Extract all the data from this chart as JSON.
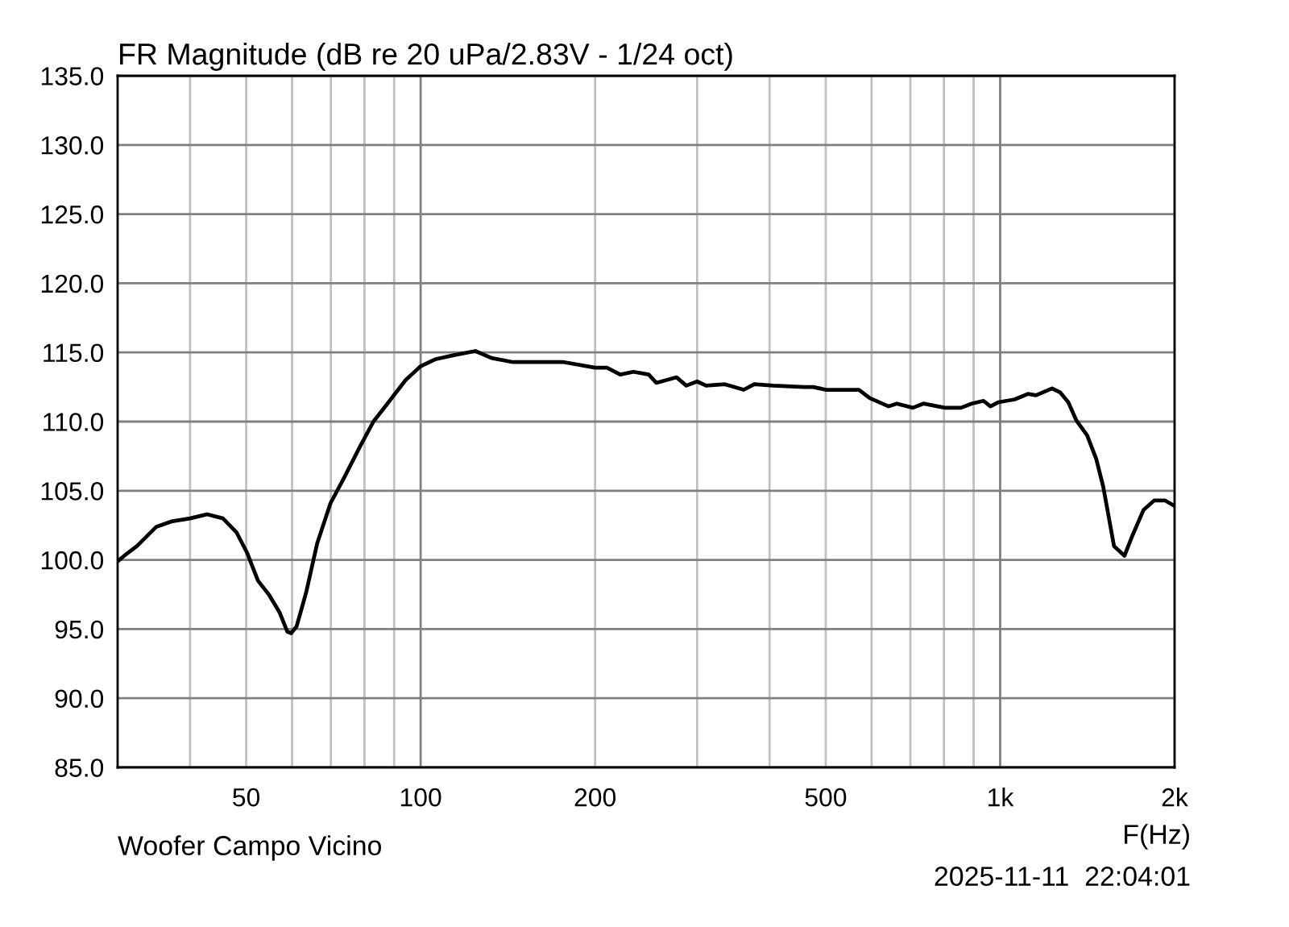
{
  "chart_data": {
    "type": "line",
    "title": "FR Magnitude (dB re 20 uPa/2.83V - 1/24 oct)",
    "xlabel": "F(Hz)",
    "annotations": [
      "Woofer Campo Vicino",
      "2025-11-11  22:04:01"
    ],
    "x": [
      30,
      30.8,
      32.4,
      35.0,
      37.3,
      40,
      42.8,
      45.6,
      48.1,
      50.2,
      52.4,
      54.7,
      57.1,
      58.9,
      59.8,
      61.1,
      63.5,
      66.3,
      69.9,
      73.7,
      78.6,
      82.9,
      88.4,
      94.2,
      100,
      105.9,
      114.1,
      124.3,
      132.5,
      144.3,
      176.6,
      200,
      209.6,
      221,
      233,
      247.5,
      255,
      276.5,
      287.3,
      300,
      310.8,
      335,
      361,
      376.5,
      405.8,
      459,
      476,
      500,
      570.7,
      595.7,
      642,
      663,
      707,
      737,
      803,
      856,
      893,
      936,
      962,
      994,
      1059,
      1117,
      1153,
      1229,
      1270,
      1311,
      1353,
      1413,
      1465,
      1506,
      1538,
      1572,
      1639,
      1693,
      1767,
      1845,
      1924,
      2000
    ],
    "series": [
      {
        "color": "#000000",
        "values": [
          99.9,
          100.3,
          101.0,
          102.4,
          102.8,
          103.0,
          103.3,
          103.0,
          102.0,
          100.5,
          98.5,
          97.5,
          96.2,
          94.8,
          94.7,
          95.2,
          97.7,
          101.2,
          104.1,
          105.9,
          108.2,
          110.0,
          111.5,
          113.0,
          114.0,
          114.5,
          114.8,
          115.1,
          114.6,
          114.3,
          114.3,
          113.9,
          113.9,
          113.4,
          113.6,
          113.4,
          112.8,
          113.2,
          112.6,
          112.9,
          112.6,
          112.7,
          112.3,
          112.7,
          112.6,
          112.5,
          112.5,
          112.3,
          112.3,
          111.7,
          111.1,
          111.3,
          111.0,
          111.3,
          111.0,
          111.0,
          111.3,
          111.5,
          111.1,
          111.4,
          111.6,
          112.0,
          111.9,
          112.4,
          112.1,
          111.4,
          110.1,
          109.0,
          107.3,
          105.3,
          103.2,
          101.0,
          100.3,
          101.8,
          103.6,
          104.3,
          104.3,
          103.9
        ]
      }
    ],
    "log": "x",
    "xlim": [
      30,
      2000
    ],
    "xticks": [
      {
        "value": 40,
        "label": null
      },
      50,
      {
        "value": 60,
        "label": null
      },
      {
        "value": 70,
        "label": null
      },
      {
        "value": 80,
        "label": null
      },
      {
        "value": 90,
        "label": null
      },
      100,
      200,
      {
        "value": 300,
        "label": null
      },
      {
        "value": 400,
        "label": null
      },
      500,
      {
        "value": 600,
        "label": null
      },
      {
        "value": 700,
        "label": null
      },
      {
        "value": 800,
        "label": null
      },
      {
        "value": 900,
        "label": null
      },
      {
        "value": 1000,
        "label": "1k"
      },
      {
        "value": 2000,
        "label": "2k"
      }
    ],
    "ylim": [
      85,
      135
    ],
    "yticks": [
      {
        "value": 85,
        "label": "85.0"
      },
      {
        "value": 90,
        "label": "90.0"
      },
      {
        "value": 95,
        "label": "95.0"
      },
      {
        "value": 100,
        "label": "100.0"
      },
      {
        "value": 105,
        "label": "105.0"
      },
      {
        "value": 110,
        "label": "110.0"
      },
      {
        "value": 115,
        "label": "115.0"
      },
      {
        "value": 120,
        "label": "120.0"
      },
      {
        "value": 125,
        "label": "125.0"
      },
      {
        "value": 130,
        "label": "130.0"
      },
      {
        "value": 135,
        "label": "135.0"
      }
    ],
    "grid": true
  }
}
